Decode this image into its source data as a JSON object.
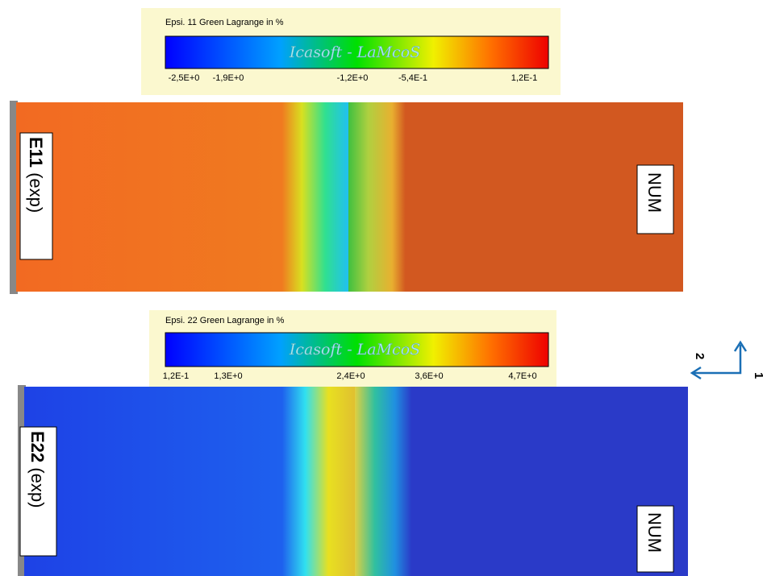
{
  "panels": [
    {
      "colorbar": {
        "title": "Epsi. 11 Green Lagrange in %",
        "watermark": "Icasoft - LaMcoS",
        "ticks": [
          "-2,5E+0",
          "-1,9E+0",
          "-1,2E+0",
          "-5,4E-1",
          "1,2E-1"
        ]
      },
      "exp_label": {
        "bold": "E11",
        "rest": "(exp)"
      },
      "num_label": "NUM"
    },
    {
      "colorbar": {
        "title": "Epsi. 22 Green Lagrange in %",
        "watermark": "Icasoft - LaMcoS",
        "ticks": [
          "1,2E-1",
          "1,3E+0",
          "2,4E+0",
          "3,6E+0",
          "4,7E+0"
        ]
      },
      "exp_label": {
        "bold": "E22",
        "rest": "(exp)"
      },
      "num_label": "NUM"
    }
  ],
  "axes": {
    "axis1": "1",
    "axis2": "2"
  }
}
